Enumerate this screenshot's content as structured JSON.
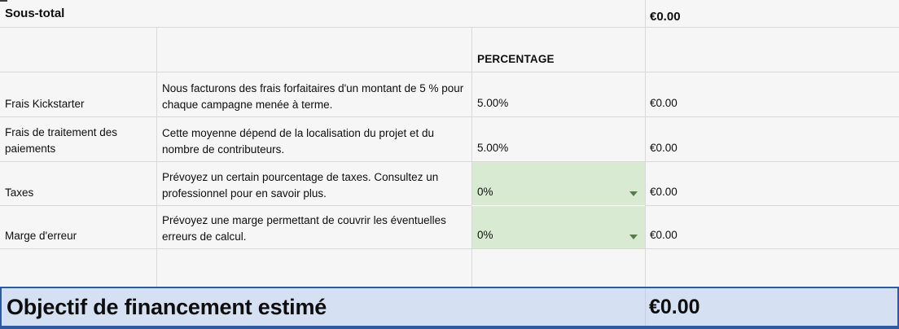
{
  "subtotal": {
    "label": "Sous-total",
    "amount": "€0.00"
  },
  "table": {
    "percentage_header": "PERCENTAGE",
    "rows": [
      {
        "label": "Frais Kickstarter",
        "description": "Nous facturons des frais forfaitaires d'un montant de 5 % pour chaque campagne menée à terme.",
        "percentage": "5.00%",
        "amount": "€0.00",
        "has_dropdown": false
      },
      {
        "label": "Frais de traitement des paiements",
        "description": "Cette moyenne dépend de la localisation du projet et du nombre de contributeurs.",
        "percentage": "5.00%",
        "amount": "€0.00",
        "has_dropdown": false
      },
      {
        "label": "Taxes",
        "description": "Prévoyez un certain pourcentage de taxes. Consultez un professionnel pour en savoir plus.",
        "percentage": "0%",
        "amount": "€0.00",
        "has_dropdown": true
      },
      {
        "label": "Marge d'erreur",
        "description": "Prévoyez une marge permettant de couvrir les éventuelles erreurs de calcul.",
        "percentage": "0%",
        "amount": "€0.00",
        "has_dropdown": true
      }
    ]
  },
  "total": {
    "label": "Objectif de financement estimé",
    "amount": "€0.00"
  },
  "colors": {
    "background": "#f6f6f6",
    "gridline": "#d9d9d9",
    "green_cell": "#d9ead3",
    "dropdown_arrow": "#567a4b",
    "selection_fill": "#d5e0f2",
    "selection_border": "#2f5aa0"
  }
}
